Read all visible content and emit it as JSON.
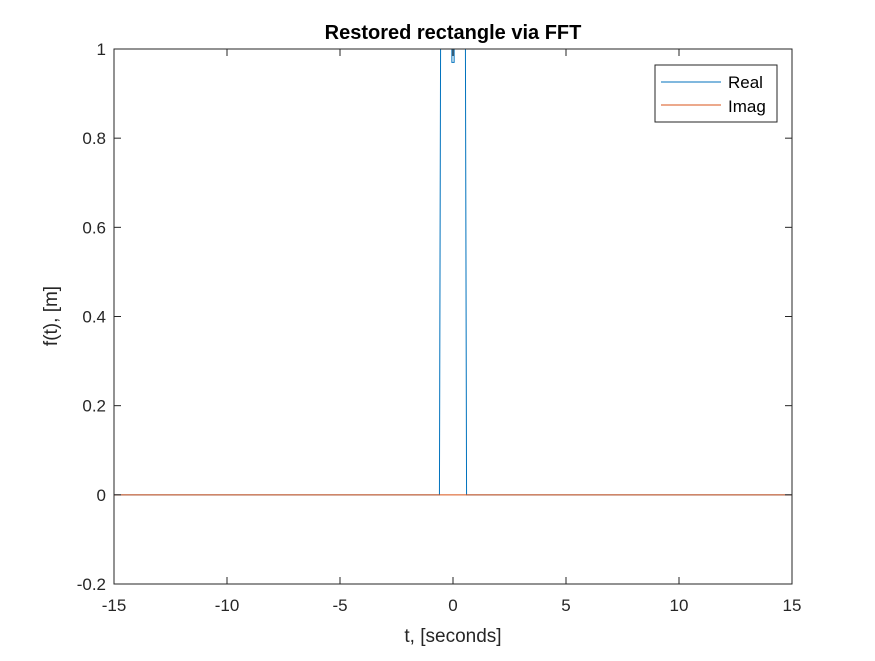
{
  "chart_data": {
    "type": "line",
    "title": "Restored rectangle via FFT",
    "xlabel": "t, [seconds]",
    "ylabel": "f(t), [m]",
    "xlim": [
      -15,
      15
    ],
    "ylim": [
      -0.2,
      1
    ],
    "xticks": [
      -15,
      -10,
      -5,
      0,
      5,
      10,
      15
    ],
    "xtick_labels": [
      "-15",
      "-10",
      "-5",
      "0",
      "5",
      "10",
      "15"
    ],
    "yticks": [
      -0.2,
      0,
      0.2,
      0.4,
      0.6,
      0.8,
      1
    ],
    "ytick_labels": [
      "-0.2",
      "0",
      "0.2",
      "0.4",
      "0.6",
      "0.8",
      "1"
    ],
    "grid": false,
    "legend_location": "top-right",
    "series": [
      {
        "name": "Real",
        "color": "#0072BD",
        "x": [
          -15,
          -0.6,
          -0.55,
          -0.55,
          -0.05,
          -0.05,
          0.05,
          0.05,
          0.55,
          0.55,
          0.6,
          15
        ],
        "y": [
          0,
          0,
          1,
          1,
          1,
          0.97,
          0.97,
          1,
          1,
          1,
          0,
          0
        ]
      },
      {
        "name": "Imag",
        "color": "#D95319",
        "x": [
          -15,
          15
        ],
        "y": [
          0,
          0
        ]
      }
    ]
  }
}
